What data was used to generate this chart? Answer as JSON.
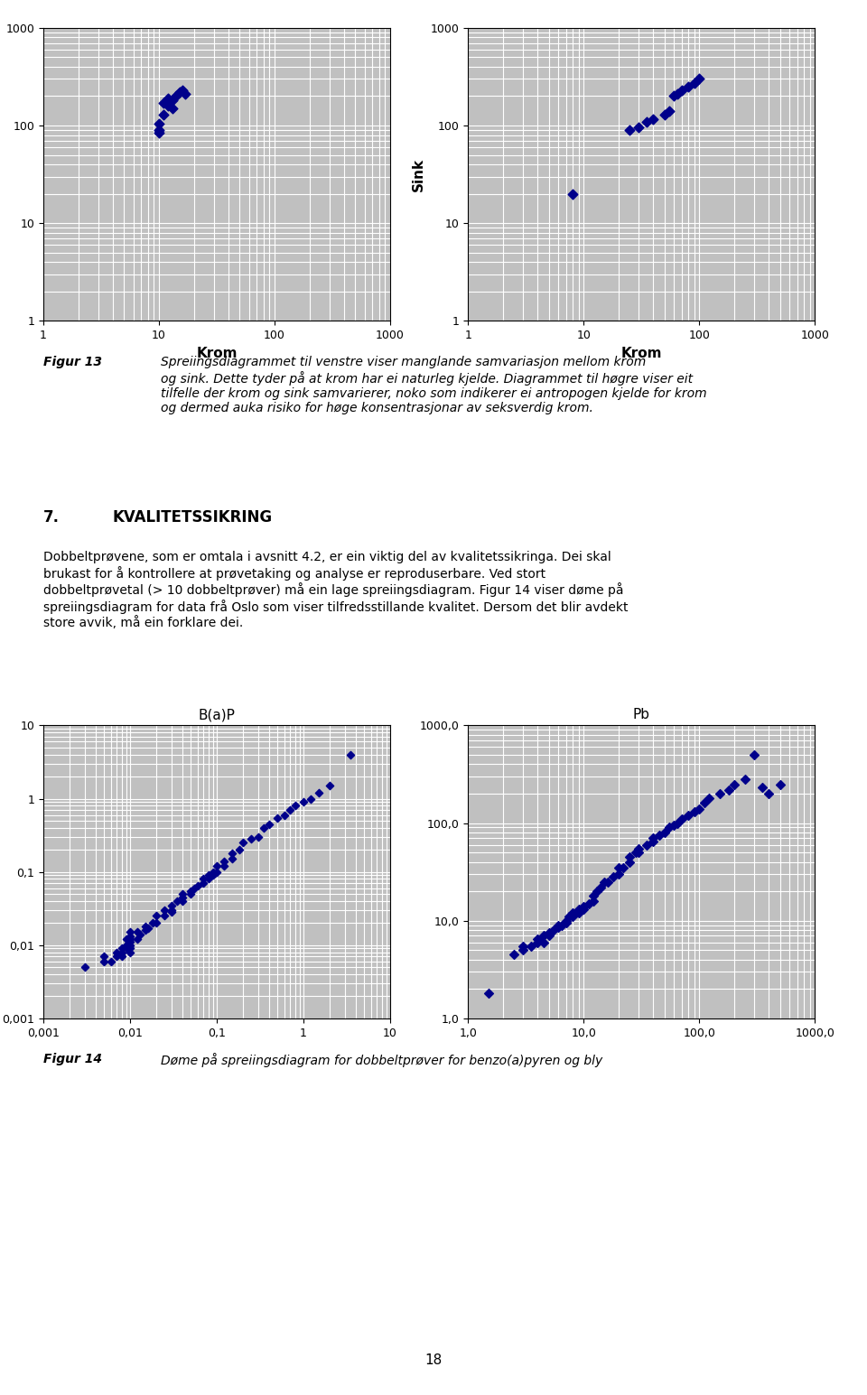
{
  "background_color": "#ffffff",
  "plot_bg_color": "#c0c0c0",
  "marker_color": "#00008B",
  "marker": "D",
  "marker_size": 5,
  "fig13_left_x": [
    10,
    10,
    10,
    11,
    12,
    13,
    14,
    15,
    16,
    17,
    13,
    11,
    12
  ],
  "fig13_left_y": [
    105,
    85,
    90,
    130,
    160,
    180,
    200,
    220,
    230,
    210,
    150,
    170,
    190
  ],
  "fig13_right_x": [
    8,
    25,
    30,
    35,
    40,
    50,
    55,
    60,
    65,
    70,
    80,
    90,
    100
  ],
  "fig13_right_y": [
    20,
    90,
    95,
    110,
    115,
    130,
    140,
    200,
    210,
    230,
    250,
    270,
    300
  ],
  "fig13_xlabel": "Krom",
  "fig13_ylabel": "Sink",
  "fig13_xlim": [
    1,
    1000
  ],
  "fig13_ylim": [
    1,
    1000
  ],
  "fig14_bap_x": [
    0.003,
    0.005,
    0.005,
    0.006,
    0.007,
    0.007,
    0.008,
    0.008,
    0.008,
    0.009,
    0.009,
    0.009,
    0.009,
    0.01,
    0.01,
    0.01,
    0.01,
    0.01,
    0.01,
    0.01,
    0.012,
    0.012,
    0.013,
    0.015,
    0.015,
    0.016,
    0.018,
    0.02,
    0.02,
    0.025,
    0.025,
    0.03,
    0.03,
    0.03,
    0.035,
    0.04,
    0.04,
    0.04,
    0.05,
    0.05,
    0.055,
    0.06,
    0.07,
    0.07,
    0.08,
    0.08,
    0.09,
    0.09,
    0.1,
    0.1,
    0.12,
    0.12,
    0.15,
    0.15,
    0.18,
    0.2,
    0.25,
    0.3,
    0.35,
    0.4,
    0.5,
    0.6,
    0.7,
    0.8,
    1.0,
    1.2,
    1.5,
    2.0,
    3.5
  ],
  "fig14_bap_y": [
    0.005,
    0.006,
    0.007,
    0.006,
    0.007,
    0.008,
    0.007,
    0.008,
    0.009,
    0.009,
    0.01,
    0.01,
    0.012,
    0.008,
    0.009,
    0.01,
    0.011,
    0.012,
    0.013,
    0.015,
    0.012,
    0.015,
    0.014,
    0.016,
    0.018,
    0.017,
    0.02,
    0.02,
    0.025,
    0.025,
    0.03,
    0.028,
    0.03,
    0.035,
    0.04,
    0.04,
    0.045,
    0.05,
    0.05,
    0.055,
    0.06,
    0.065,
    0.07,
    0.08,
    0.08,
    0.09,
    0.09,
    0.1,
    0.1,
    0.12,
    0.12,
    0.14,
    0.15,
    0.18,
    0.2,
    0.25,
    0.28,
    0.3,
    0.4,
    0.45,
    0.55,
    0.6,
    0.7,
    0.8,
    0.9,
    1.0,
    1.2,
    1.5,
    4.0
  ],
  "fig14_bap_xlabel_ticks": [
    0.001,
    0.01,
    0.1,
    1,
    10
  ],
  "fig14_bap_xlabel_labels": [
    "0,001",
    "0,01",
    "0,1",
    "1",
    "10"
  ],
  "fig14_bap_ylabel_ticks": [
    0.001,
    0.01,
    0.1,
    1,
    10
  ],
  "fig14_bap_ylabel_labels": [
    "0,001",
    "0,01",
    "0,1",
    "1",
    "10"
  ],
  "fig14_bap_xlim": [
    0.001,
    10
  ],
  "fig14_bap_ylim": [
    0.001,
    10
  ],
  "fig14_bap_title": "B(a)P",
  "fig14_pb_x": [
    1.5,
    2.5,
    3.0,
    3.0,
    3.5,
    4.0,
    4.0,
    4.5,
    4.5,
    5.0,
    5.0,
    5.5,
    6.0,
    6.0,
    6.5,
    7.0,
    7.0,
    7.5,
    8.0,
    8.0,
    9.0,
    9.0,
    10,
    10,
    11,
    12,
    12,
    13,
    14,
    15,
    16,
    18,
    20,
    20,
    22,
    25,
    25,
    28,
    30,
    30,
    35,
    40,
    40,
    45,
    50,
    55,
    60,
    65,
    70,
    80,
    90,
    100,
    110,
    120,
    150,
    180,
    200,
    250,
    300,
    350,
    400,
    500
  ],
  "fig14_pb_y": [
    1.8,
    4.5,
    5.0,
    5.5,
    5.5,
    6.0,
    6.5,
    6.0,
    7.0,
    7.0,
    7.5,
    8.0,
    8.5,
    9.0,
    9.0,
    9.5,
    10,
    11,
    11,
    12,
    12,
    13,
    13,
    14,
    15,
    16,
    18,
    20,
    22,
    25,
    25,
    28,
    30,
    35,
    35,
    40,
    45,
    50,
    50,
    55,
    60,
    65,
    70,
    75,
    80,
    90,
    95,
    100,
    110,
    120,
    130,
    140,
    160,
    180,
    200,
    220,
    250,
    280,
    500,
    230,
    200,
    250
  ],
  "fig14_pb_xlabel_ticks": [
    1.0,
    10.0,
    100.0,
    1000.0
  ],
  "fig14_pb_xlabel_labels": [
    "1,0",
    "10,0",
    "100,0",
    "1000,0"
  ],
  "fig14_pb_ylabel_ticks": [
    1.0,
    10.0,
    100.0,
    1000.0
  ],
  "fig14_pb_ylabel_labels": [
    "1,0",
    "10,0",
    "100,0",
    "1000,0"
  ],
  "fig14_pb_xlim": [
    1.0,
    1000.0
  ],
  "fig14_pb_ylim": [
    1.0,
    1000.0
  ],
  "fig14_pb_title": "Pb",
  "text_fig13": "Figur 13  Spreiingsdiagrammet til venstre viser manglande samvariasjon mellom krom\nog sink. Dette tyder på at krom har ei naturleg kjelde. Diagrammet til høgre viser eit\ntilfelle der krom og sink samvarierer, noko som indikerer ei antropogen kjelde for krom\nog dermed auka risiko for høge konsentrasjonar av seksverdig krom.",
  "text_section7": "7.  KVALITETSSIKRING",
  "text_para1": "Dobbeltprøvene, som er omtala i avsnitt 4.2, er ein viktig del av kvalitetssikringa. Dei skal\nbrukast for å kontrollere at prøvetaking og analyse er reproduserbare. Ved stort\ndobbeltprøvetal (> 10 dobbeltprøver) må ein lage spreiingsdiagram. Figur 14 viser døme på\nspreiingsdiagram for data frå Oslo som viser tilfredsstillande kvalitet. Dersom det blir avdekt\nstore avvik, må ein forklare dei.",
  "text_fig14": "Figur 14  Døme på spreiingsdiagram for dobbeltprøver for benzo(a)pyren og bly",
  "page_number": "18"
}
